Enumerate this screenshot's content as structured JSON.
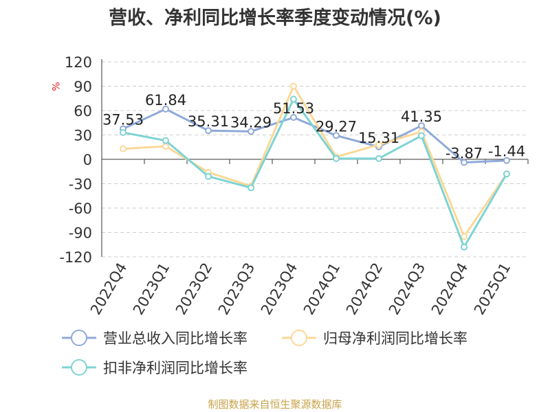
{
  "title": "营收、净利同比增长率季度变动情况(%)",
  "source": "制图数据来自恒生聚源数据库",
  "chart_data": {
    "type": "line",
    "ylabel": "%",
    "ylim": [
      -120,
      120
    ],
    "yticks": [
      120,
      90,
      60,
      30,
      0,
      -30,
      -60,
      -90,
      -120
    ],
    "grid": true,
    "legend_position": "bottom",
    "categories": [
      "2022Q4",
      "2023Q1",
      "2023Q2",
      "2023Q3",
      "2023Q4",
      "2024Q1",
      "2024Q2",
      "2024Q3",
      "2024Q4",
      "2025Q1"
    ],
    "series": [
      {
        "name": "营业总收入同比增长率",
        "color": "#8fa9d9",
        "values": [
          37.53,
          61.84,
          35.31,
          34.29,
          51.53,
          29.27,
          15.31,
          41.35,
          -3.87,
          -1.44
        ],
        "labels": [
          "37.53",
          "61.84",
          "35.31",
          "34.29",
          "51.53",
          "29.27",
          "15.31",
          "41.35",
          "-3.87",
          "-1.44"
        ]
      },
      {
        "name": "归母净利润同比增长率",
        "color": "#fad897",
        "values": [
          13,
          16,
          -16,
          -33,
          90,
          3,
          18,
          34,
          -95,
          -18
        ]
      },
      {
        "name": "扣非净利润同比增长率",
        "color": "#7ed3d3",
        "values": [
          33,
          23,
          -21,
          -35,
          74,
          1,
          1,
          29,
          -108,
          -18
        ]
      }
    ]
  }
}
